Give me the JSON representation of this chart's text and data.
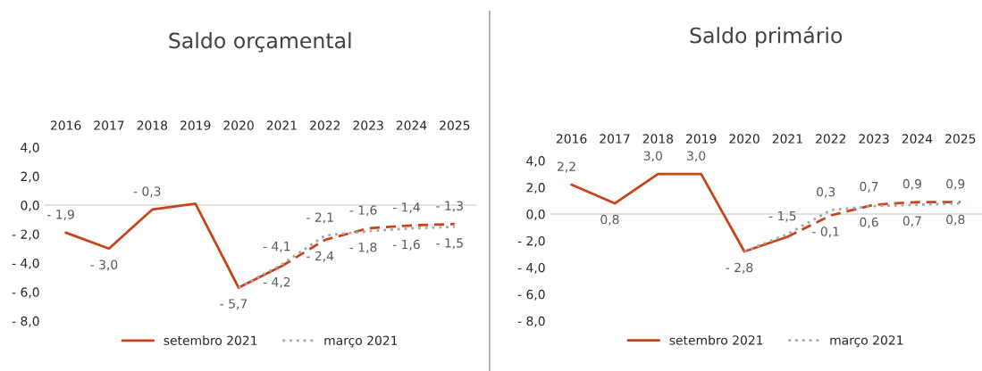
{
  "chart_data": [
    {
      "type": "line",
      "title": "Saldo orçamental",
      "categories": [
        "2016",
        "2017",
        "2018",
        "2019",
        "2020",
        "2021",
        "2022",
        "2023",
        "2024",
        "2025"
      ],
      "series": [
        {
          "name": "setembro 2021",
          "color": "#c8431a",
          "line_style": "solid",
          "values": [
            -1.9,
            -3.0,
            -0.3,
            0.1,
            -5.7,
            -4.2,
            null,
            null,
            null,
            null
          ],
          "value_labels": [
            "- 1,9",
            "- 3,0",
            "- 0,3",
            null,
            "- 5,7",
            "- 4,2",
            null,
            null,
            null,
            null
          ]
        },
        {
          "color": "#c8431a",
          "line_style": "dashed",
          "values": [
            null,
            null,
            null,
            null,
            null,
            -4.2,
            -2.4,
            -1.6,
            -1.4,
            -1.3
          ],
          "value_labels": [
            null,
            null,
            null,
            null,
            null,
            null,
            "- 2,4",
            "- 1,6",
            "- 1,4",
            "- 1,3"
          ]
        },
        {
          "name": "março 2021",
          "color": "#a6a6a6",
          "line_style": "dotted",
          "values": [
            null,
            null,
            null,
            null,
            -5.7,
            -4.1,
            -2.1,
            -1.8,
            -1.6,
            -1.5
          ],
          "value_labels": [
            null,
            null,
            null,
            null,
            null,
            "- 4,1",
            "- 2,1",
            "- 1,8",
            "- 1,6",
            "- 1,5"
          ]
        }
      ],
      "ylim": [
        -8,
        4
      ],
      "yticks": [
        {
          "value": -8,
          "label": "- 8,0"
        },
        {
          "value": -6,
          "label": "- 6,0"
        },
        {
          "value": -4,
          "label": "- 4,0"
        },
        {
          "value": -2,
          "label": "- 2,0"
        },
        {
          "value": 0,
          "label": "0,0"
        },
        {
          "value": 2,
          "label": "2,0"
        },
        {
          "value": 4,
          "label": "4,0"
        }
      ],
      "ref_lines": [
        {
          "axis": "y",
          "value": 0,
          "color": "#d9d9d9"
        }
      ],
      "grid": false,
      "legend": "bottom",
      "marker": "none"
    },
    {
      "type": "line",
      "title": "Saldo primário",
      "categories": [
        "2016",
        "2017",
        "2018",
        "2019",
        "2020",
        "2021",
        "2022",
        "2023",
        "2024",
        "2025"
      ],
      "series": [
        {
          "name": "setembro 2021",
          "color": "#c8431a",
          "line_style": "solid",
          "values": [
            2.2,
            0.8,
            3.0,
            3.0,
            -2.8,
            -1.7,
            null,
            null,
            null,
            null
          ],
          "value_labels": [
            "2,2",
            "0,8",
            "3,0",
            "3,0",
            "- 2,8",
            null,
            null,
            null,
            null,
            null
          ]
        },
        {
          "color": "#c8431a",
          "line_style": "dashed",
          "values": [
            null,
            null,
            null,
            null,
            null,
            -1.7,
            -0.1,
            0.7,
            0.9,
            0.9
          ],
          "value_labels": [
            null,
            null,
            null,
            null,
            null,
            null,
            "- 0,1",
            "0,7",
            "0,9",
            "0,9"
          ]
        },
        {
          "name": "março 2021",
          "color": "#a6a6a6",
          "line_style": "dotted",
          "values": [
            null,
            null,
            null,
            null,
            -2.8,
            -1.5,
            0.3,
            0.6,
            0.7,
            0.8
          ],
          "value_labels": [
            null,
            null,
            null,
            null,
            null,
            "- 1,5",
            "0,3",
            "0,6",
            "0,7",
            "0,8"
          ]
        }
      ],
      "ylim": [
        -8,
        4
      ],
      "yticks": [
        {
          "value": -8,
          "label": "- 8,0"
        },
        {
          "value": -6,
          "label": "- 6,0"
        },
        {
          "value": -4,
          "label": "- 4,0"
        },
        {
          "value": -2,
          "label": "- 2,0"
        },
        {
          "value": 0,
          "label": "0,0"
        },
        {
          "value": 2,
          "label": "2,0"
        },
        {
          "value": 4,
          "label": "4,0"
        }
      ],
      "ref_lines": [
        {
          "axis": "y",
          "value": 0,
          "color": "#d9d9d9"
        }
      ],
      "grid": false,
      "legend": "bottom",
      "marker": "none"
    }
  ]
}
